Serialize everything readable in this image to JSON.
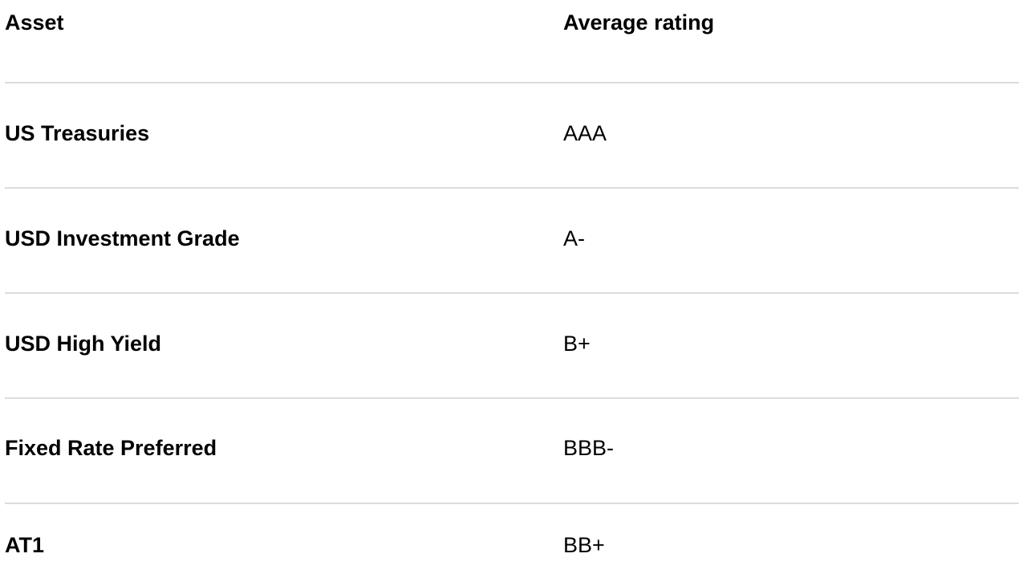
{
  "table": {
    "header": {
      "asset": "Asset",
      "rating": "Average rating"
    },
    "rows": [
      {
        "asset": "US Treasuries",
        "rating": "AAA"
      },
      {
        "asset": "USD Investment Grade",
        "rating": "A-"
      },
      {
        "asset": "USD High Yield",
        "rating": "B+"
      },
      {
        "asset": "Fixed Rate Preferred",
        "rating": "BBB-"
      },
      {
        "asset": "AT1",
        "rating": "BB+"
      }
    ]
  }
}
